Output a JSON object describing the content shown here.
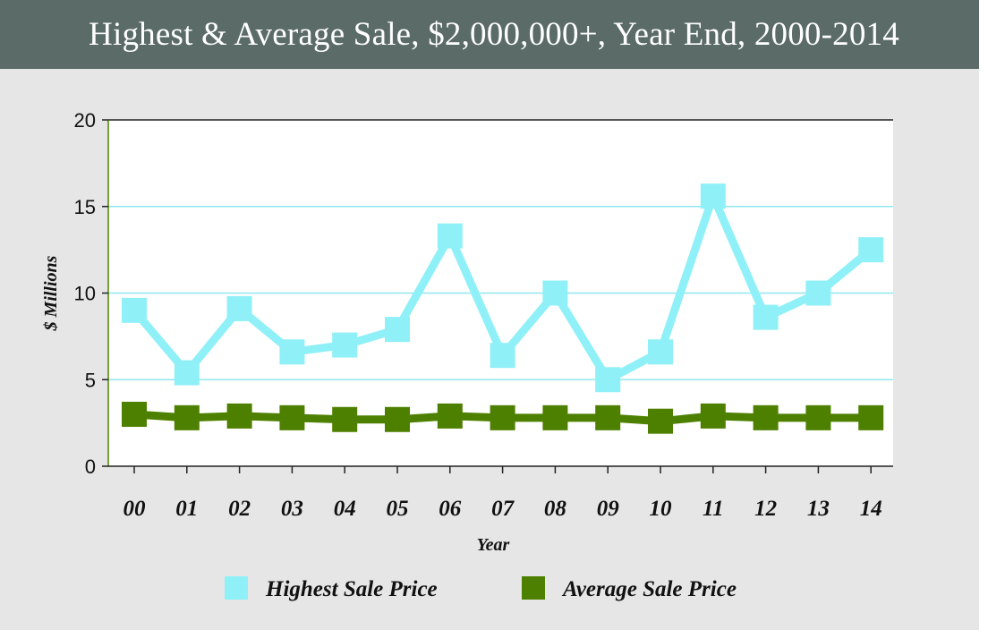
{
  "title": "Highest & Average Sale, $2,000,000+, Year End, 2000-2014",
  "colors": {
    "header_bg": "#5a6b68",
    "background": "#e6e6e6",
    "plot_bg": "#ffffff",
    "grid": "#8fe8ee",
    "highest": "#8ff0f8",
    "average": "#4e8000"
  },
  "chart_data": {
    "type": "line",
    "categories": [
      "00",
      "01",
      "02",
      "03",
      "04",
      "05",
      "06",
      "07",
      "08",
      "09",
      "10",
      "11",
      "12",
      "13",
      "14"
    ],
    "series": [
      {
        "name": "Highest Sale Price",
        "values": [
          9.0,
          5.4,
          9.1,
          6.6,
          7.0,
          7.9,
          13.3,
          6.4,
          10.0,
          5.0,
          6.6,
          15.6,
          8.6,
          10.0,
          12.5
        ]
      },
      {
        "name": "Average Sale Price",
        "values": [
          3.0,
          2.8,
          2.9,
          2.8,
          2.7,
          2.7,
          2.9,
          2.8,
          2.8,
          2.8,
          2.6,
          2.9,
          2.8,
          2.8,
          2.8
        ]
      }
    ],
    "yticks": [
      0,
      5,
      10,
      15,
      20
    ],
    "ylim": [
      0,
      20
    ],
    "xlabel": "Year",
    "ylabel": "$ Millions",
    "grid": true,
    "legend_position": "bottom"
  }
}
